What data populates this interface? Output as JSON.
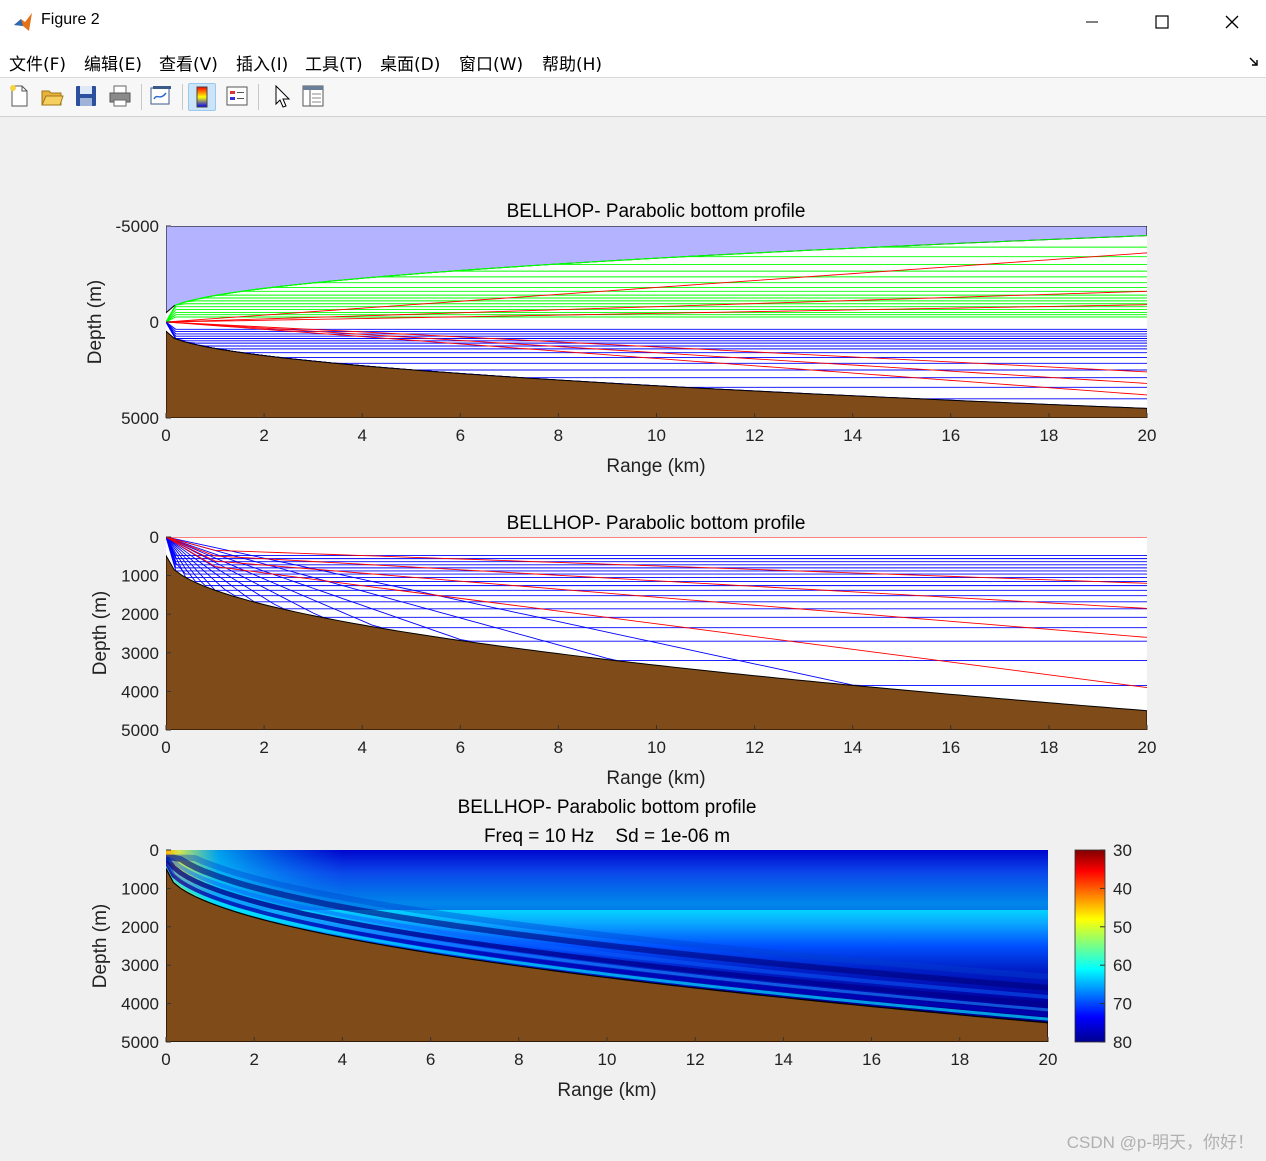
{
  "window": {
    "title": "Figure 2"
  },
  "menu": [
    "文件(F)",
    "编辑(E)",
    "查看(V)",
    "插入(I)",
    "工具(T)",
    "桌面(D)",
    "窗口(W)",
    "帮助(H)"
  ],
  "toolbar": {
    "buttons": [
      "new-figure-icon",
      "open-file-icon",
      "save-icon",
      "print-icon",
      "link-plot-icon",
      "colorbar-icon",
      "legend-icon",
      "edit-plot-icon",
      "property-editor-icon"
    ]
  },
  "watermark": "CSDN @p-明天，你好！",
  "chart_data": [
    {
      "type": "line",
      "title": "BELLHOP- Parabolic bottom profile",
      "xlabel": "Range (km)",
      "ylabel": "Depth (m)",
      "xlim": [
        0,
        20
      ],
      "ylim": [
        -5000,
        5000
      ],
      "xticks": [
        "0",
        "2",
        "4",
        "6",
        "8",
        "10",
        "12",
        "14",
        "16",
        "18",
        "20"
      ],
      "yticks": [
        "-5000",
        "0",
        "5000"
      ],
      "colors": {
        "surface_fill": "#b3b3ff",
        "bottom_fill": "#7f4c19",
        "rays": [
          "#00ff00",
          "#ff0000",
          "#0000ff"
        ]
      }
    },
    {
      "type": "line",
      "title": "BELLHOP- Parabolic bottom profile",
      "xlabel": "Range (km)",
      "ylabel": "Depth (m)",
      "xlim": [
        0,
        20
      ],
      "ylim": [
        0,
        5000
      ],
      "xticks": [
        "0",
        "2",
        "4",
        "6",
        "8",
        "10",
        "12",
        "14",
        "16",
        "18",
        "20"
      ],
      "yticks": [
        "0",
        "1000",
        "2000",
        "3000",
        "4000",
        "5000"
      ],
      "colors": {
        "bottom_fill": "#7f4c19",
        "rays": [
          "#ff0000",
          "#0000ff"
        ]
      }
    },
    {
      "type": "heatmap",
      "title": "BELLHOP- Parabolic bottom profile",
      "subtitle": "Freq = 10 Hz    Sd = 1e-06 m",
      "xlabel": "Range (km)",
      "ylabel": "Depth (m)",
      "xlim": [
        0,
        20
      ],
      "ylim": [
        0,
        5000
      ],
      "xticks": [
        "0",
        "2",
        "4",
        "6",
        "8",
        "10",
        "12",
        "14",
        "16",
        "18",
        "20"
      ],
      "yticks": [
        "0",
        "1000",
        "2000",
        "3000",
        "4000",
        "5000"
      ],
      "colorbar": {
        "range": [
          30,
          80
        ],
        "ticks": [
          "30",
          "40",
          "50",
          "60",
          "70",
          "80"
        ],
        "colormap": "jet reversed"
      },
      "colors": {
        "bottom_fill": "#7f4c19"
      }
    }
  ]
}
